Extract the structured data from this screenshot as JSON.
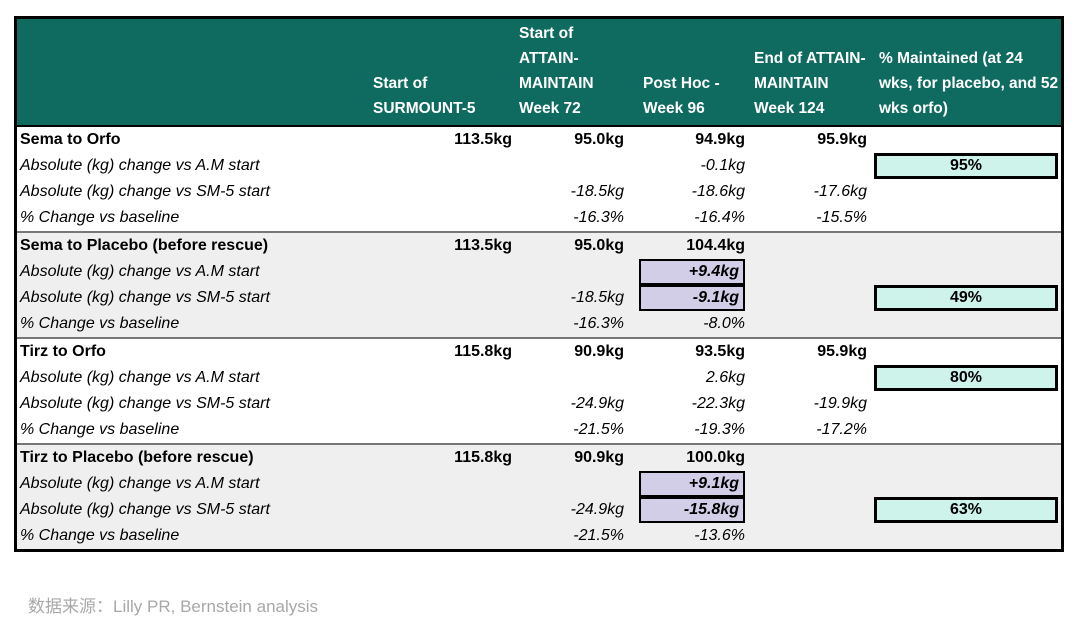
{
  "chart_data": {
    "type": "table",
    "title": "",
    "columns": [
      "",
      "Start of SURMOUNT-5",
      "Start of ATTAIN-MAINTAIN Week 72",
      "Post Hoc - Week 96",
      "End of ATTAIN-MAINTAIN Week 124",
      "% Maintained (at 24 wks, for placebo, and 52 wks orfo)"
    ],
    "groups": [
      {
        "rows": [
          {
            "label": "Sema to Orfo",
            "cells": [
              "113.5kg",
              "95.0kg",
              "94.9kg",
              "95.9kg",
              ""
            ]
          },
          {
            "label": "Absolute (kg) change vs A.M start",
            "cells": [
              "",
              "",
              "-0.1kg",
              "",
              {
                "t": "95%",
                "hl": "teal"
              }
            ]
          },
          {
            "label": "Absolute (kg) change vs SM-5 start",
            "cells": [
              "",
              "-18.5kg",
              "-18.6kg",
              "-17.6kg",
              ""
            ]
          },
          {
            "label": "% Change vs baseline",
            "cells": [
              "",
              "-16.3%",
              "-16.4%",
              "-15.5%",
              ""
            ]
          }
        ]
      },
      {
        "rows": [
          {
            "label": "Sema to Placebo (before rescue)",
            "cells": [
              "113.5kg",
              "95.0kg",
              "104.4kg",
              "",
              ""
            ]
          },
          {
            "label": "Absolute (kg) change vs A.M start",
            "cells": [
              "",
              "",
              {
                "t": "+9.4kg",
                "hl": "purple"
              },
              "",
              ""
            ]
          },
          {
            "label": "Absolute (kg) change vs SM-5 start",
            "cells": [
              "",
              "-18.5kg",
              {
                "t": "-9.1kg",
                "hl": "purple"
              },
              "",
              {
                "t": "49%",
                "hl": "teal"
              }
            ]
          },
          {
            "label": "% Change vs baseline",
            "cells": [
              "",
              "-16.3%",
              "-8.0%",
              "",
              ""
            ]
          }
        ]
      },
      {
        "rows": [
          {
            "label": "Tirz to Orfo",
            "cells": [
              "115.8kg",
              "90.9kg",
              "93.5kg",
              "95.9kg",
              ""
            ]
          },
          {
            "label": "Absolute (kg) change vs A.M start",
            "cells": [
              "",
              "",
              "2.6kg",
              "",
              {
                "t": "80%",
                "hl": "teal"
              }
            ]
          },
          {
            "label": "Absolute (kg) change vs SM-5 start",
            "cells": [
              "",
              "-24.9kg",
              "-22.3kg",
              "-19.9kg",
              ""
            ]
          },
          {
            "label": "% Change vs baseline",
            "cells": [
              "",
              "-21.5%",
              "-19.3%",
              "-17.2%",
              ""
            ]
          }
        ]
      },
      {
        "rows": [
          {
            "label": "Tirz to Placebo (before rescue)",
            "cells": [
              "115.8kg",
              "90.9kg",
              "100.0kg",
              "",
              ""
            ]
          },
          {
            "label": "Absolute (kg) change vs A.M start",
            "cells": [
              "",
              "",
              {
                "t": "+9.1kg",
                "hl": "purple"
              },
              "",
              ""
            ]
          },
          {
            "label": "Absolute (kg) change vs SM-5 start",
            "cells": [
              "",
              "-24.9kg",
              {
                "t": "-15.8kg",
                "hl": "purple"
              },
              "",
              {
                "t": "63%",
                "hl": "teal"
              }
            ]
          },
          {
            "label": "% Change vs baseline",
            "cells": [
              "",
              "-21.5%",
              "-13.6%",
              "",
              ""
            ]
          }
        ]
      }
    ],
    "legend": "",
    "layout_hints": {
      "grid": false,
      "alternating_group_backgrounds": true
    }
  },
  "footer": {
    "source_label": "数据来源：",
    "source_text": "Lilly PR, Bernstein analysis"
  },
  "colors": {
    "header_bg": "#0F6B60",
    "header_text": "#FFFFFF",
    "teal_highlight_bg": "#CDF3EA",
    "purple_highlight_bg": "#D2CEE8",
    "alt_group_bg": "#EFEFEF",
    "table_border": "#000000",
    "source_text_color": "#A8A8A8"
  }
}
